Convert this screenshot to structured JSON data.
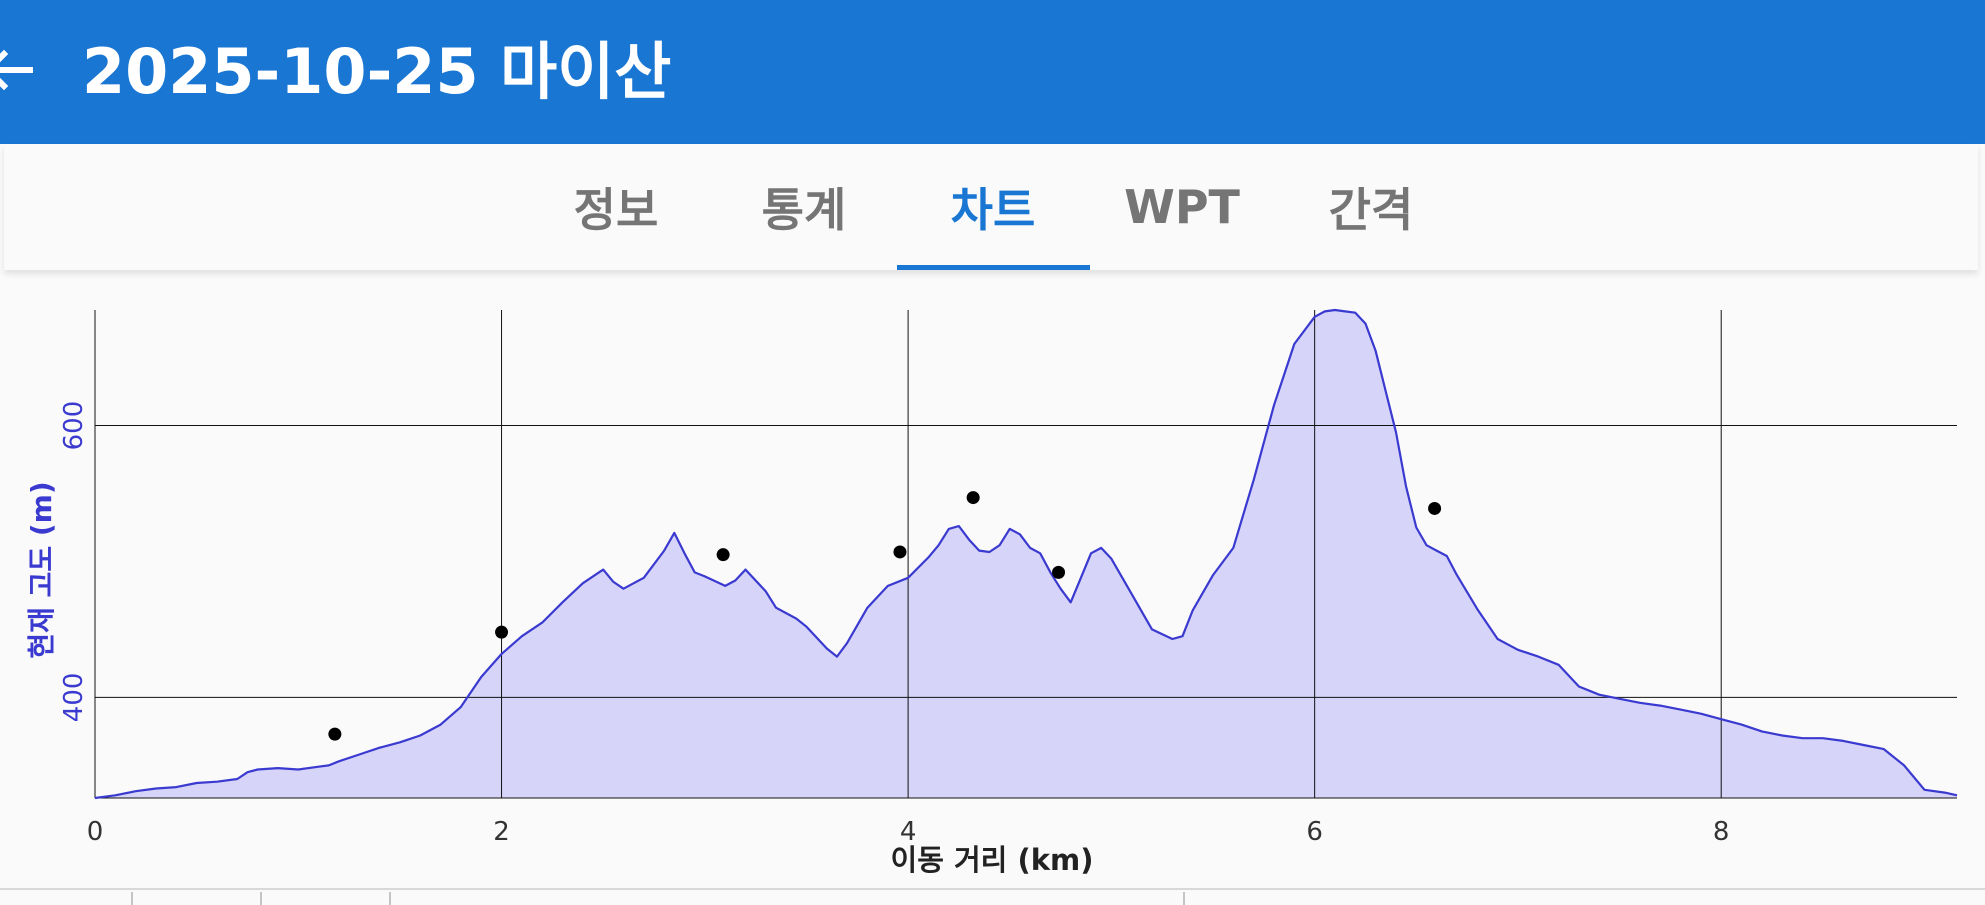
{
  "header": {
    "title": "2025-10-25 마이산",
    "back_icon": "arrow-back-icon"
  },
  "tabs": [
    {
      "label": "정보",
      "active": false
    },
    {
      "label": "통계",
      "active": false
    },
    {
      "label": "차트",
      "active": true
    },
    {
      "label": "WPT",
      "active": false
    },
    {
      "label": "간격",
      "active": false
    }
  ],
  "colors": {
    "appbar": "#1976d2",
    "active_tab": "#1976d2",
    "inactive_tab": "#757575",
    "series_line": "#3a3ad0",
    "series_fill": "#d6d4f9",
    "y_axis_text": "#3a3ad0",
    "waypoint": "#000000"
  },
  "chart_data": {
    "type": "area",
    "xlabel": "이동 거리 (km)",
    "ylabel": "현재 고도 (m)",
    "xlim": [
      0,
      9.16
    ],
    "ylim": [
      326,
      685
    ],
    "x_ticks": [
      0,
      2,
      4,
      6,
      8
    ],
    "y_ticks": [
      400,
      600
    ],
    "grid": true,
    "series": [
      {
        "x": [
          0,
          0.1,
          0.2,
          0.3,
          0.4,
          0.5,
          0.6,
          0.7,
          0.75,
          0.8,
          0.9,
          1.0,
          1.1,
          1.15,
          1.2,
          1.3,
          1.4,
          1.5,
          1.6,
          1.7,
          1.8,
          1.9,
          2.0,
          2.1,
          2.2,
          2.3,
          2.4,
          2.5,
          2.55,
          2.6,
          2.65,
          2.7,
          2.8,
          2.85,
          2.9,
          2.95,
          3.0,
          3.1,
          3.15,
          3.2,
          3.3,
          3.35,
          3.4,
          3.45,
          3.5,
          3.6,
          3.65,
          3.7,
          3.8,
          3.9,
          4.0,
          4.1,
          4.15,
          4.2,
          4.25,
          4.3,
          4.35,
          4.4,
          4.45,
          4.5,
          4.55,
          4.6,
          4.65,
          4.7,
          4.75,
          4.8,
          4.85,
          4.9,
          4.95,
          5.0,
          5.1,
          5.2,
          5.3,
          5.35,
          5.4,
          5.5,
          5.6,
          5.7,
          5.8,
          5.9,
          6.0,
          6.05,
          6.1,
          6.15,
          6.2,
          6.25,
          6.3,
          6.35,
          6.4,
          6.45,
          6.5,
          6.55,
          6.6,
          6.65,
          6.7,
          6.8,
          6.9,
          7.0,
          7.1,
          7.2,
          7.3,
          7.4,
          7.5,
          7.6,
          7.7,
          7.8,
          7.9,
          8.0,
          8.1,
          8.2,
          8.3,
          8.4,
          8.5,
          8.6,
          8.7,
          8.8,
          8.9,
          9.0,
          9.1,
          9.16
        ],
        "y": [
          326,
          328,
          331,
          333,
          334,
          337,
          338,
          340,
          345,
          347,
          348,
          347,
          349,
          350,
          353,
          358,
          363,
          367,
          372,
          380,
          393,
          415,
          432,
          445,
          455,
          470,
          484,
          494,
          485,
          480,
          484,
          488,
          508,
          521,
          506,
          492,
          489,
          482,
          486,
          494,
          478,
          466,
          462,
          458,
          452,
          436,
          430,
          440,
          466,
          482,
          488,
          503,
          512,
          524,
          526,
          516,
          508,
          507,
          512,
          524,
          520,
          510,
          506,
          492,
          480,
          470,
          488,
          506,
          510,
          502,
          476,
          450,
          443,
          445,
          464,
          490,
          510,
          560,
          615,
          660,
          680,
          684,
          685,
          684,
          683,
          675,
          655,
          625,
          595,
          555,
          525,
          512,
          508,
          504,
          490,
          465,
          443,
          435,
          430,
          424,
          408,
          402,
          399,
          396,
          394,
          391,
          388,
          384,
          380,
          375,
          372,
          370,
          370,
          368,
          365,
          362,
          350,
          332,
          330,
          328
        ]
      }
    ],
    "waypoints": [
      {
        "x": 1.18,
        "y": 373
      },
      {
        "x": 2.0,
        "y": 448
      },
      {
        "x": 3.09,
        "y": 505
      },
      {
        "x": 3.96,
        "y": 507
      },
      {
        "x": 4.32,
        "y": 547
      },
      {
        "x": 4.74,
        "y": 492
      },
      {
        "x": 6.59,
        "y": 539
      }
    ]
  }
}
